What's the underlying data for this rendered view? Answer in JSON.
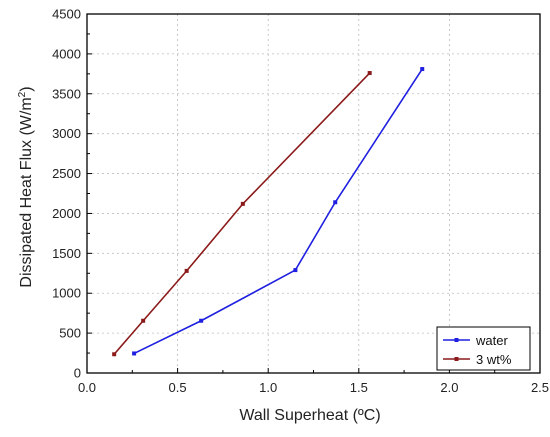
{
  "chart_data": {
    "type": "line",
    "xlabel": "Wall Superheat (ºC)",
    "ylabel_main": "Dissipated Heat Flux (W/m",
    "ylabel_sup": "2",
    "ylabel_end": ")",
    "xlim": [
      0.0,
      2.5
    ],
    "ylim": [
      0,
      4500
    ],
    "x_ticks": [
      "0.0",
      "0.5",
      "1.0",
      "1.5",
      "2.0",
      "2.5"
    ],
    "y_ticks": [
      "0",
      "500",
      "1000",
      "1500",
      "2000",
      "2500",
      "3000",
      "3500",
      "4000",
      "4500"
    ],
    "grid": true,
    "legend_position": "bottom-right",
    "series": [
      {
        "name": "water",
        "color": "#1f1fe0",
        "x": [
          0.26,
          0.63,
          1.15,
          1.37,
          1.85
        ],
        "y": [
          245,
          655,
          1290,
          2140,
          3810
        ]
      },
      {
        "name": "3 wt%",
        "color": "#8b1a1a",
        "x": [
          0.15,
          0.31,
          0.55,
          0.86,
          1.56
        ],
        "y": [
          235,
          655,
          1280,
          2120,
          3760
        ]
      }
    ]
  }
}
